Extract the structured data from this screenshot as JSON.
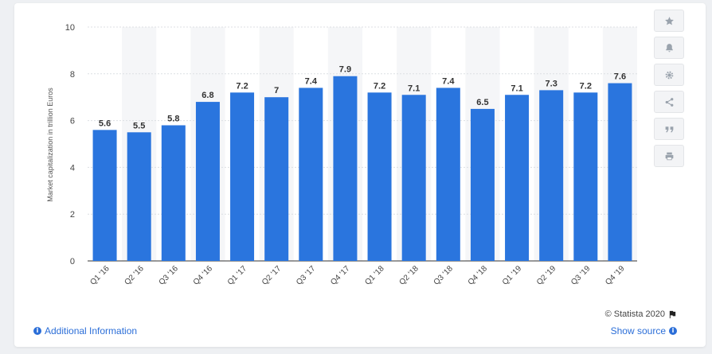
{
  "chart_data": {
    "type": "bar",
    "categories": [
      "Q1 '16",
      "Q2 '16",
      "Q3 '16",
      "Q4 '16",
      "Q1 '17",
      "Q2 '17",
      "Q3 '17",
      "Q4 '17",
      "Q1 '18",
      "Q2 '18",
      "Q3 '18",
      "Q4 '18",
      "Q1 '19",
      "Q2 '19",
      "Q3 '19",
      "Q4 '19"
    ],
    "values": [
      5.6,
      5.5,
      5.8,
      6.8,
      7.2,
      7,
      7.4,
      7.9,
      7.2,
      7.1,
      7.4,
      6.5,
      7.1,
      7.3,
      7.2,
      7.6
    ],
    "data_labels": [
      "5.6",
      "5.5",
      "5.8",
      "6.8",
      "7.2",
      "7",
      "7.4",
      "7.9",
      "7.2",
      "7.1",
      "7.4",
      "6.5",
      "7.1",
      "7.3",
      "7.2",
      "7.6"
    ],
    "yticks": [
      0,
      2,
      4,
      6,
      8,
      10
    ],
    "ylim": [
      0,
      10
    ],
    "ylabel": "Market capitalization in trillion Euros",
    "xlabel": "",
    "grid": true,
    "bar_color": "#2a75de",
    "alt_band_color": "#f5f6f8"
  },
  "sidebar": {
    "buttons": [
      {
        "icon": "star-icon"
      },
      {
        "icon": "bell-icon"
      },
      {
        "icon": "gear-icon"
      },
      {
        "icon": "share-icon"
      },
      {
        "icon": "quote-icon"
      },
      {
        "icon": "print-icon"
      }
    ]
  },
  "footer": {
    "copyright": "© Statista 2020",
    "additional_info": "Additional Information",
    "show_source": "Show source"
  }
}
